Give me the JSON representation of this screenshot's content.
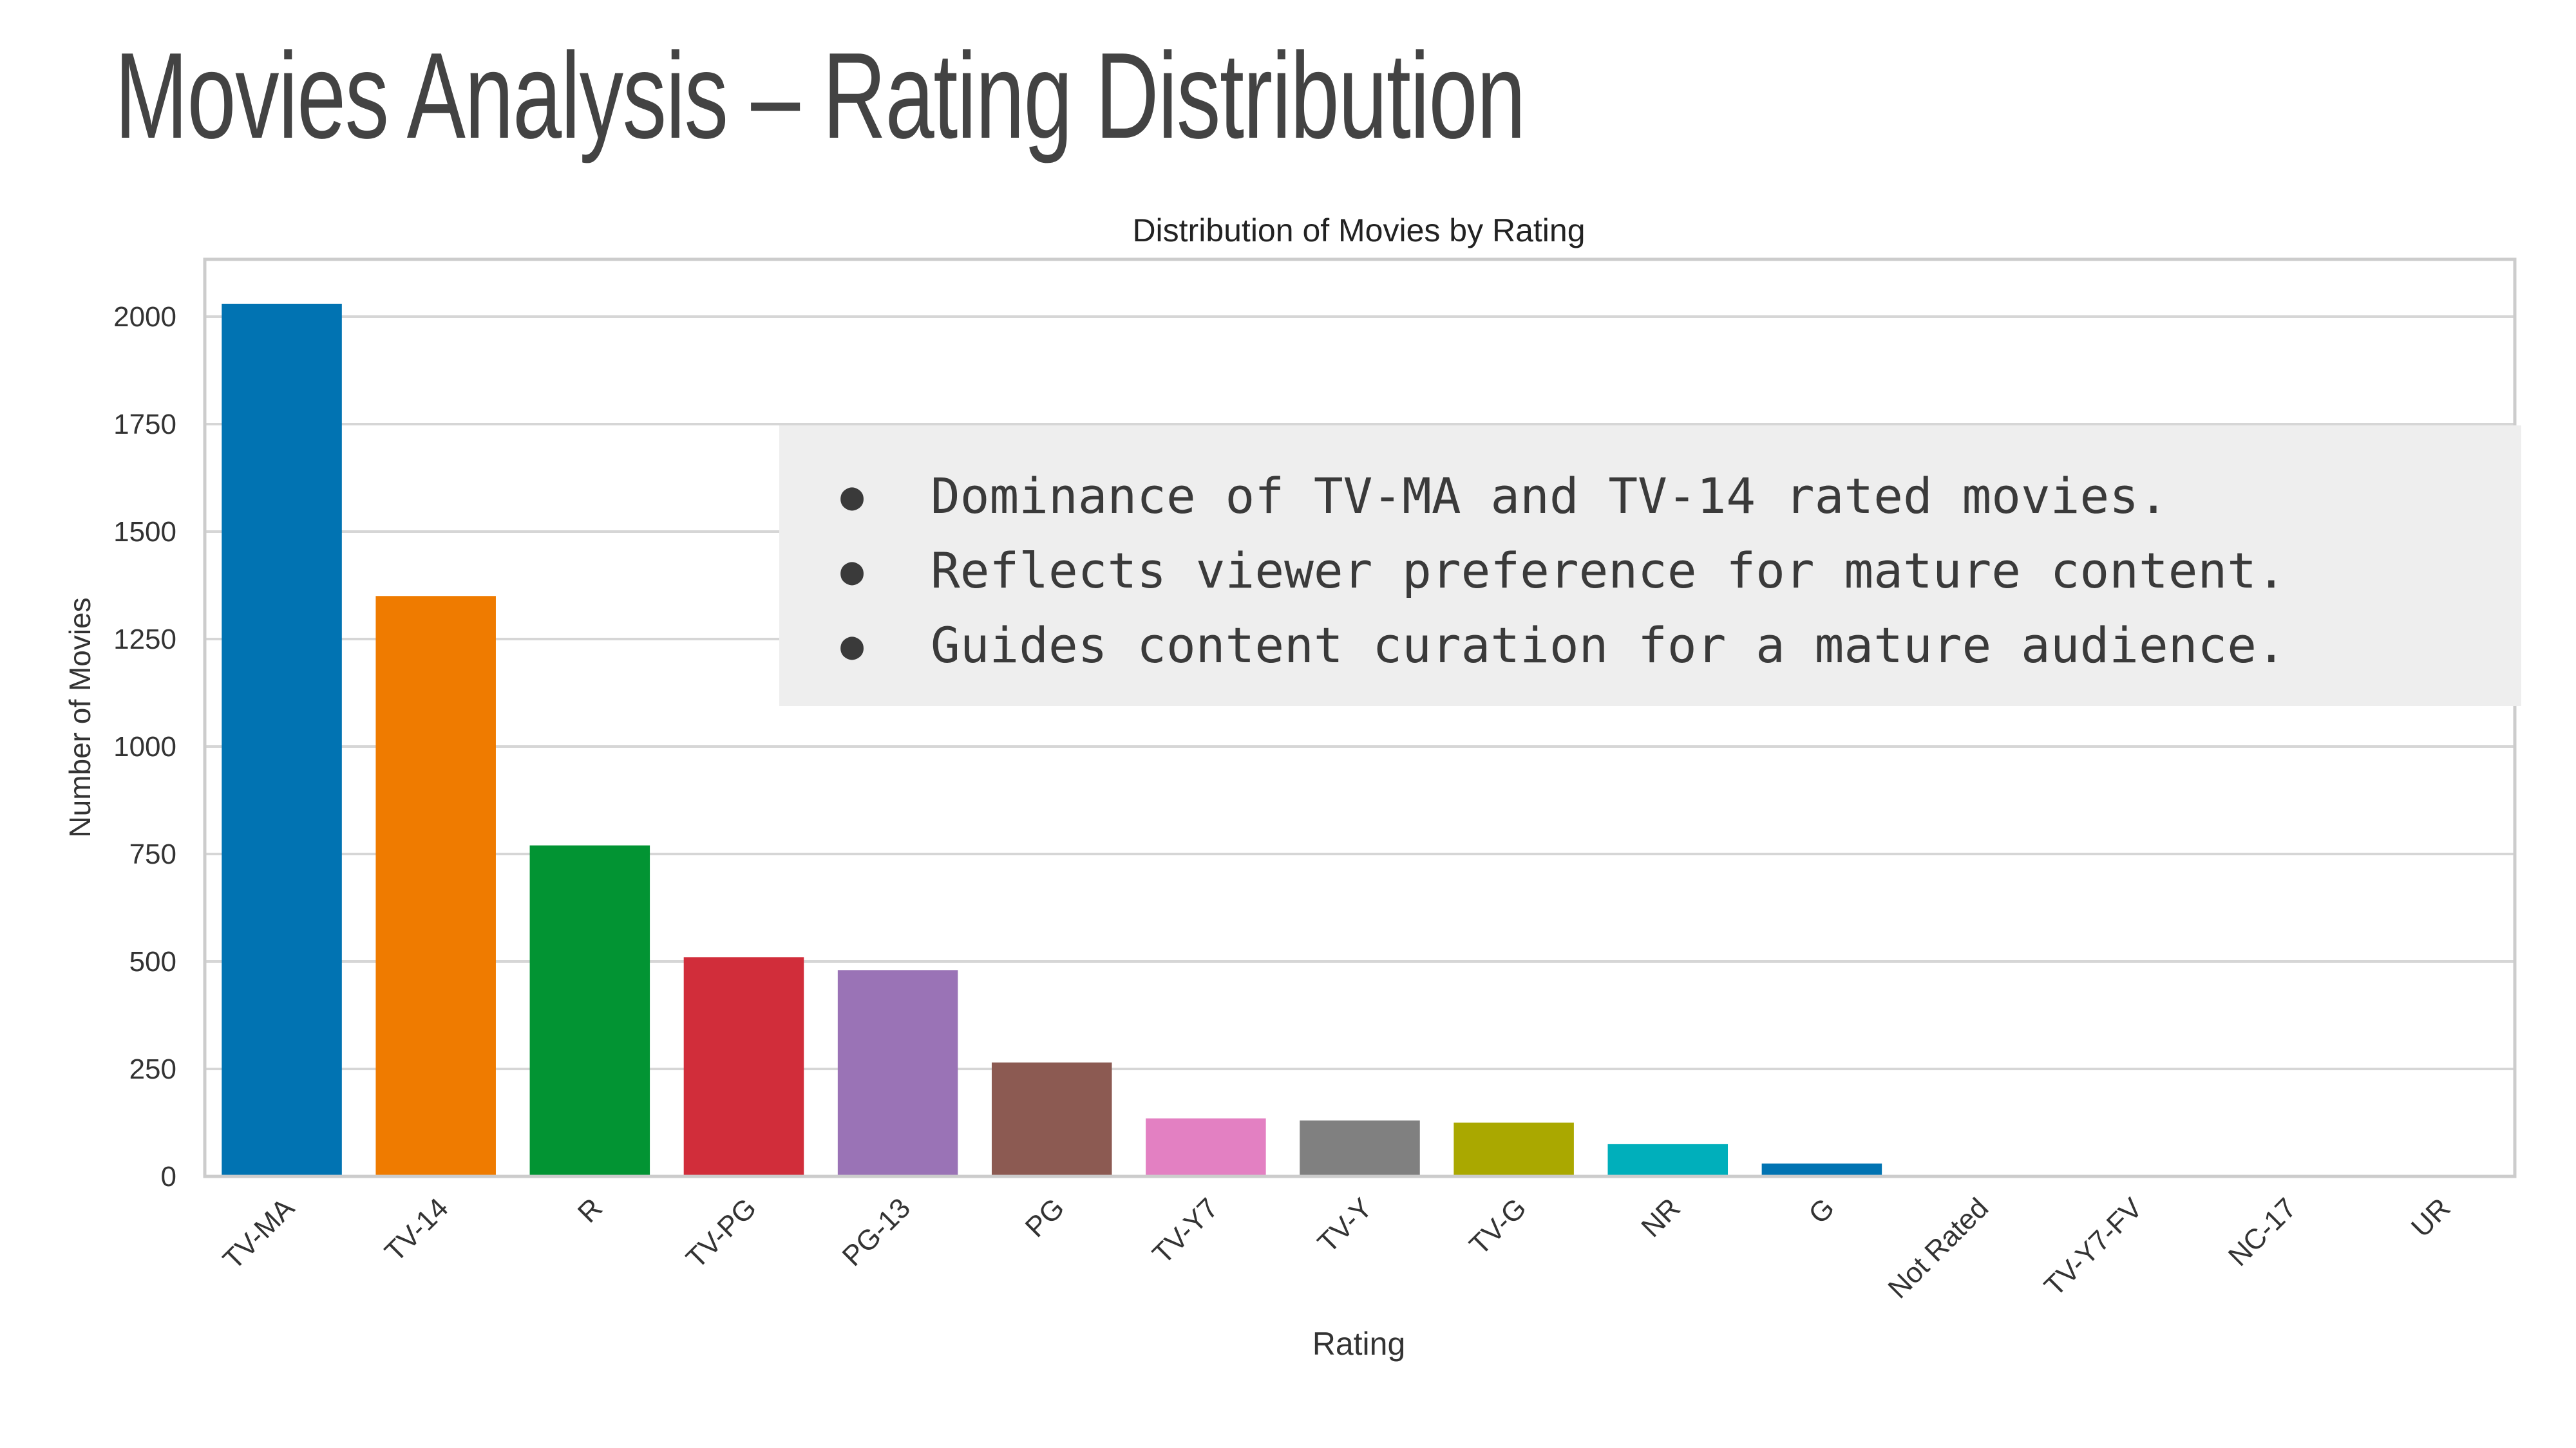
{
  "page_title": "Movies Analysis – Rating Distribution",
  "notes": [
    "Dominance of TV-MA and TV-14 rated movies.",
    "Reflects viewer preference for mature content.",
    "Guides content curation for a mature audience."
  ],
  "chart_data": {
    "type": "bar",
    "title": "Distribution of Movies by Rating",
    "xlabel": "Rating",
    "ylabel": "Number of Movies",
    "categories": [
      "TV-MA",
      "TV-14",
      "R",
      "TV-PG",
      "PG-13",
      "PG",
      "TV-Y7",
      "TV-Y",
      "TV-G",
      "NR",
      "G",
      "Not Rated",
      "TV-Y7-FV",
      "NC-17",
      "UR"
    ],
    "values": [
      2030,
      1350,
      770,
      510,
      480,
      265,
      135,
      130,
      125,
      75,
      30,
      3,
      2,
      2,
      1
    ],
    "colors": [
      "#0173b2",
      "#ef7b00",
      "#029433",
      "#d12d3a",
      "#9a73b6",
      "#8c5a52",
      "#e380c2",
      "#808080",
      "#aaa800",
      "#00afbb",
      "#0173b2",
      "#de8f05",
      "#029e73",
      "#d55e00",
      "#cc78bc"
    ],
    "yticks": [
      0,
      250,
      500,
      750,
      1000,
      1250,
      1500,
      1750,
      2000
    ],
    "ylim": [
      0,
      2150
    ],
    "grid": true
  }
}
